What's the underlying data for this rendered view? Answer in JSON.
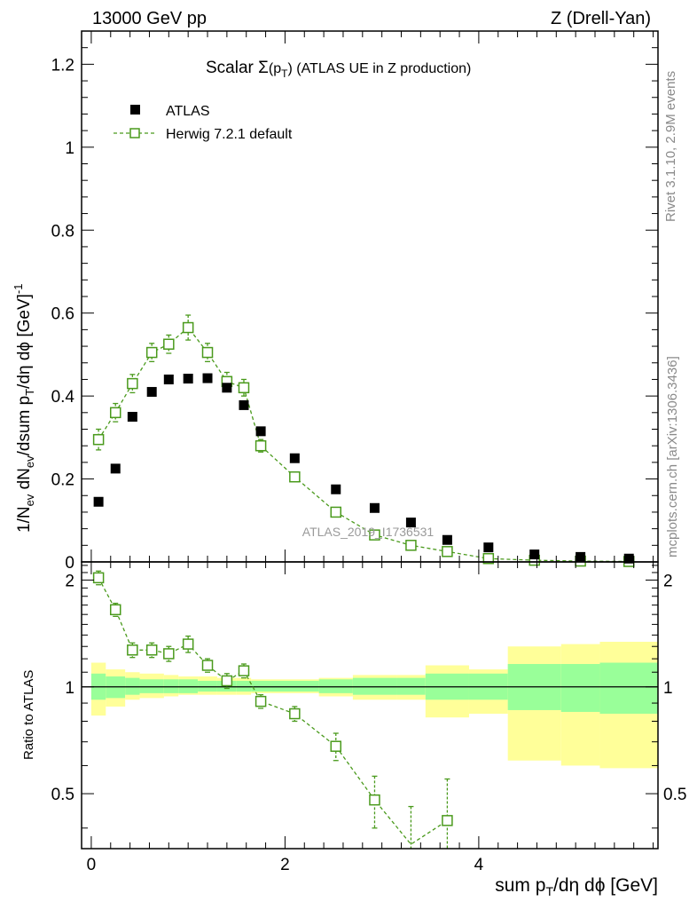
{
  "header": {
    "left": "13000 GeV pp",
    "right": "Z (Drell-Yan)"
  },
  "side_labels": {
    "rivet": "Rivet 3.1.10,  2.9M events",
    "mcplots": "mcplots.cern.ch [arXiv:1306.3436]"
  },
  "watermark": "ATLAS_2019_I1736531",
  "colors": {
    "herwig": "#4a9a1c",
    "atlas": "#000000",
    "band_inner": "#99ff99",
    "band_outer": "#ffff99"
  },
  "chart_data": [
    {
      "type": "scatter",
      "title": "Scalar Σ(pT) (ATLAS UE in Z production)",
      "title_parts": {
        "pre": "Scalar ",
        "sigma": "Σ",
        "paren": "(p",
        "sub": "T",
        "close": ")",
        "rest": " (ATLAS UE in Z production)"
      },
      "ylabel": "1/Nev dNev/dsum pT/dη dϕ [GeV]^-1",
      "ylabel_parts": {
        "a": "1/N",
        "ev": "ev",
        "b": " dN",
        "c": "/dsum p",
        "t": "T",
        "d": "/dη dϕ  [GeV]",
        "exp": "-1"
      },
      "xlim": [
        -0.1,
        5.85
      ],
      "ylim": [
        0,
        1.28
      ],
      "yticks": [
        0,
        0.2,
        0.4,
        0.6,
        0.8,
        1,
        1.2
      ],
      "ytick_labels": [
        "0",
        "0.2",
        "0.4",
        "0.6",
        "0.8",
        "1",
        "1.2"
      ],
      "legend_position": "top-left",
      "series": [
        {
          "name": "ATLAS",
          "marker": "filled-square",
          "x": [
            0.075,
            0.25,
            0.425,
            0.625,
            0.8,
            1.0,
            1.2,
            1.4,
            1.575,
            1.75,
            2.1,
            2.525,
            2.925,
            3.3,
            3.675,
            4.1,
            4.575,
            5.05,
            5.55
          ],
          "y": [
            0.145,
            0.225,
            0.35,
            0.41,
            0.44,
            0.442,
            0.443,
            0.42,
            0.378,
            0.315,
            0.25,
            0.175,
            0.13,
            0.095,
            0.053,
            0.035,
            0.018,
            0.012,
            0.008
          ]
        },
        {
          "name": "Herwig 7.2.1 default",
          "marker": "open-square",
          "line": "dashed",
          "x": [
            0.075,
            0.25,
            0.425,
            0.625,
            0.8,
            1.0,
            1.2,
            1.4,
            1.575,
            1.75,
            2.1,
            2.525,
            2.925,
            3.3,
            3.675,
            4.1,
            4.575,
            5.05,
            5.55
          ],
          "y": [
            0.295,
            0.36,
            0.43,
            0.505,
            0.525,
            0.565,
            0.505,
            0.435,
            0.42,
            0.28,
            0.205,
            0.12,
            0.065,
            0.04,
            0.025,
            0.008,
            0.004,
            0.002,
            0.001
          ],
          "yerr": [
            0.025,
            0.022,
            0.022,
            0.022,
            0.022,
            0.03,
            0.022,
            0.022,
            0.02,
            0.015,
            0.01,
            0.008,
            0.006,
            0.005,
            0.004,
            0.002,
            0.002,
            0.001,
            0.001
          ]
        }
      ]
    },
    {
      "type": "scatter",
      "ylabel": "Ratio to ATLAS",
      "xlabel": "sum pT/dη dϕ [GeV]",
      "xlabel_parts": {
        "a": "sum p",
        "t": "T",
        "b": "/dη dϕ [GeV]"
      },
      "xlim": [
        -0.1,
        5.85
      ],
      "ylim": [
        0.35,
        2.25
      ],
      "yticks": [
        0.5,
        1,
        2
      ],
      "ytick_labels": [
        "0.5",
        "1",
        "2"
      ],
      "xticks": [
        0,
        2,
        4
      ],
      "xtick_labels": [
        "0",
        "2",
        "4"
      ],
      "reference_line": 1,
      "bands": {
        "edges": [
          0,
          0.15,
          0.35,
          0.5,
          0.75,
          0.9,
          1.1,
          1.3,
          1.5,
          1.65,
          1.85,
          2.35,
          2.7,
          3.15,
          3.45,
          3.9,
          4.3,
          4.85,
          5.25,
          5.85
        ],
        "inner_lo": [
          0.92,
          0.93,
          0.95,
          0.96,
          0.96,
          0.96,
          0.97,
          0.97,
          0.97,
          0.97,
          0.97,
          0.96,
          0.95,
          0.95,
          0.92,
          0.92,
          0.86,
          0.85,
          0.84
        ],
        "inner_hi": [
          1.09,
          1.07,
          1.06,
          1.05,
          1.05,
          1.05,
          1.04,
          1.04,
          1.04,
          1.04,
          1.04,
          1.05,
          1.06,
          1.06,
          1.09,
          1.09,
          1.16,
          1.16,
          1.17
        ],
        "outer_lo": [
          0.83,
          0.88,
          0.92,
          0.93,
          0.94,
          0.95,
          0.95,
          0.95,
          0.95,
          0.96,
          0.96,
          0.94,
          0.92,
          0.92,
          0.82,
          0.84,
          0.62,
          0.6,
          0.59
        ],
        "outer_hi": [
          1.17,
          1.12,
          1.1,
          1.09,
          1.08,
          1.07,
          1.07,
          1.06,
          1.06,
          1.05,
          1.05,
          1.06,
          1.08,
          1.08,
          1.15,
          1.12,
          1.3,
          1.32,
          1.34
        ]
      },
      "series": [
        {
          "name": "Herwig 7.2.1 default / ATLAS",
          "x": [
            0.075,
            0.25,
            0.425,
            0.625,
            0.8,
            1.0,
            1.2,
            1.4,
            1.575,
            1.75,
            2.1,
            2.525,
            2.925,
            3.3,
            3.675
          ],
          "y": [
            2.03,
            1.65,
            1.27,
            1.27,
            1.24,
            1.32,
            1.15,
            1.04,
            1.11,
            0.91,
            0.84,
            0.68,
            0.48,
            0.36,
            0.42
          ],
          "yerr": [
            0.09,
            0.07,
            0.06,
            0.06,
            0.06,
            0.07,
            0.05,
            0.05,
            0.05,
            0.04,
            0.04,
            0.06,
            0.08,
            0.1,
            0.13
          ],
          "marker_hidden": [
            false,
            false,
            false,
            false,
            false,
            false,
            false,
            false,
            false,
            false,
            false,
            false,
            false,
            true,
            false
          ]
        }
      ]
    }
  ]
}
